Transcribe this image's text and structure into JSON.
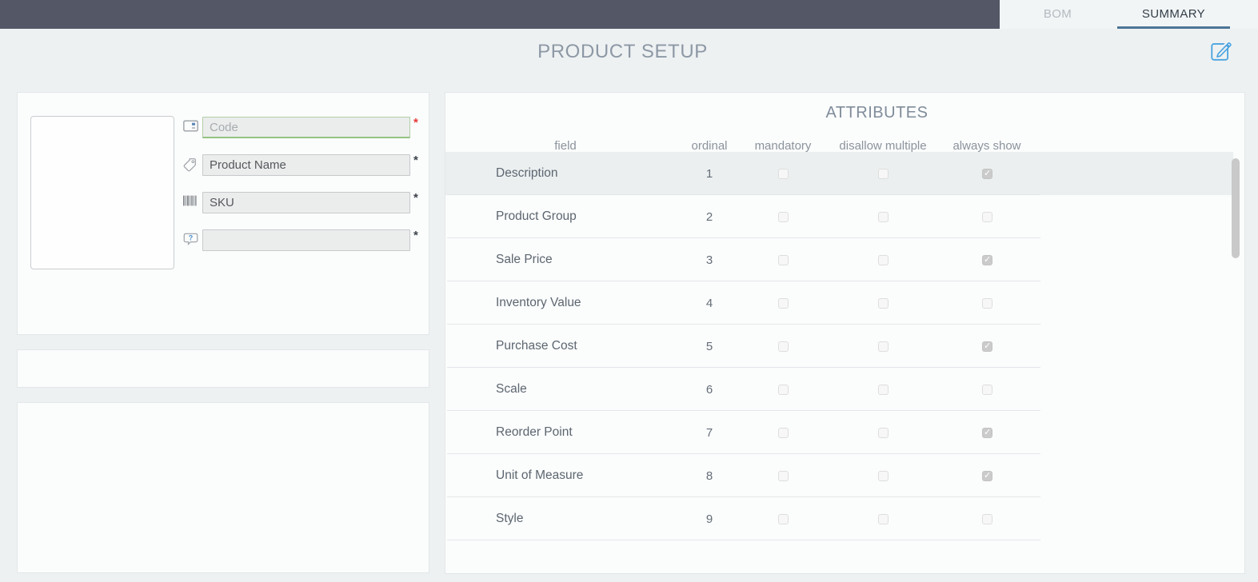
{
  "tabs": [
    {
      "label": "BOM",
      "active": false
    },
    {
      "label": "SUMMARY",
      "active": true
    }
  ],
  "page_title": "PRODUCT SETUP",
  "toolbar": {
    "edit_icon": "edit-pencil-icon"
  },
  "product_form": {
    "fields": [
      {
        "name": "code",
        "icon": "card-icon",
        "value": "",
        "placeholder": "Code",
        "required": true,
        "asterisk_color": "#e53935",
        "focused": true
      },
      {
        "name": "product-name",
        "icon": "tag-icon",
        "value": "Product Name",
        "placeholder": "",
        "required": true,
        "asterisk_color": "#3d444b",
        "focused": false
      },
      {
        "name": "sku",
        "icon": "barcode-icon",
        "value": "SKU",
        "placeholder": "",
        "required": true,
        "asterisk_color": "#3d444b",
        "focused": false
      },
      {
        "name": "comment",
        "icon": "comment-question-icon",
        "value": "",
        "placeholder": "",
        "required": true,
        "asterisk_color": "#3d444b",
        "focused": false
      }
    ]
  },
  "attributes": {
    "title": "ATTRIBUTES",
    "columns": [
      "field",
      "ordinal",
      "mandatory",
      "disallow multiple",
      "always show"
    ],
    "rows": [
      {
        "field": "Description",
        "ordinal": "1",
        "mandatory": false,
        "disallow_multiple": false,
        "always_show": true,
        "highlighted": true
      },
      {
        "field": "Product Group",
        "ordinal": "2",
        "mandatory": false,
        "disallow_multiple": false,
        "always_show": false,
        "highlighted": false
      },
      {
        "field": "Sale Price",
        "ordinal": "3",
        "mandatory": false,
        "disallow_multiple": false,
        "always_show": true,
        "highlighted": false
      },
      {
        "field": "Inventory Value",
        "ordinal": "4",
        "mandatory": false,
        "disallow_multiple": false,
        "always_show": false,
        "highlighted": false
      },
      {
        "field": "Purchase Cost",
        "ordinal": "5",
        "mandatory": false,
        "disallow_multiple": false,
        "always_show": true,
        "highlighted": false
      },
      {
        "field": "Scale",
        "ordinal": "6",
        "mandatory": false,
        "disallow_multiple": false,
        "always_show": false,
        "highlighted": false
      },
      {
        "field": "Reorder Point",
        "ordinal": "7",
        "mandatory": false,
        "disallow_multiple": false,
        "always_show": true,
        "highlighted": false
      },
      {
        "field": "Unit of Measure",
        "ordinal": "8",
        "mandatory": false,
        "disallow_multiple": false,
        "always_show": true,
        "highlighted": false
      },
      {
        "field": "Style",
        "ordinal": "9",
        "mandatory": false,
        "disallow_multiple": false,
        "always_show": false,
        "highlighted": false
      }
    ]
  },
  "colors": {
    "topbar": "#535766",
    "tab_underline": "#4c7596",
    "accent_blue": "#4aa3e0",
    "required_red": "#e53935",
    "row_highlight": "#ebeff0",
    "checked_checkbox": "#cbcbcb"
  }
}
